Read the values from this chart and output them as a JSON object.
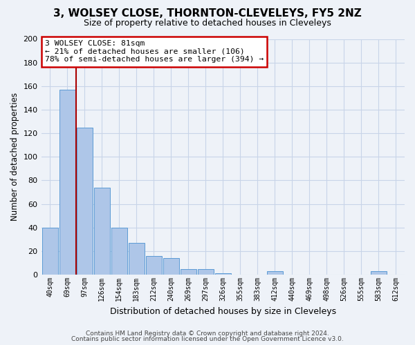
{
  "title": "3, WOLSEY CLOSE, THORNTON-CLEVELEYS, FY5 2NZ",
  "subtitle": "Size of property relative to detached houses in Cleveleys",
  "xlabel": "Distribution of detached houses by size in Cleveleys",
  "ylabel": "Number of detached properties",
  "bar_labels": [
    "40sqm",
    "69sqm",
    "97sqm",
    "126sqm",
    "154sqm",
    "183sqm",
    "212sqm",
    "240sqm",
    "269sqm",
    "297sqm",
    "326sqm",
    "355sqm",
    "383sqm",
    "412sqm",
    "440sqm",
    "469sqm",
    "498sqm",
    "526sqm",
    "555sqm",
    "583sqm",
    "612sqm"
  ],
  "bar_values": [
    40,
    157,
    125,
    74,
    40,
    27,
    16,
    14,
    5,
    5,
    1,
    0,
    0,
    3,
    0,
    0,
    0,
    0,
    0,
    3,
    0
  ],
  "bar_color": "#aec6e8",
  "bar_edge_color": "#5b9bd5",
  "vline_x": 1.5,
  "vline_color": "#aa0000",
  "annotation_text": "3 WOLSEY CLOSE: 81sqm\n← 21% of detached houses are smaller (106)\n78% of semi-detached houses are larger (394) →",
  "annotation_box_color": "#ffffff",
  "annotation_box_edge": "#cc0000",
  "ylim": [
    0,
    200
  ],
  "yticks": [
    0,
    20,
    40,
    60,
    80,
    100,
    120,
    140,
    160,
    180,
    200
  ],
  "footer1": "Contains HM Land Registry data © Crown copyright and database right 2024.",
  "footer2": "Contains public sector information licensed under the Open Government Licence v3.0.",
  "bg_color": "#eef2f8",
  "plot_bg_color": "#eef2f8",
  "grid_color": "#c8d4e8",
  "title_fontsize": 11,
  "subtitle_fontsize": 9
}
